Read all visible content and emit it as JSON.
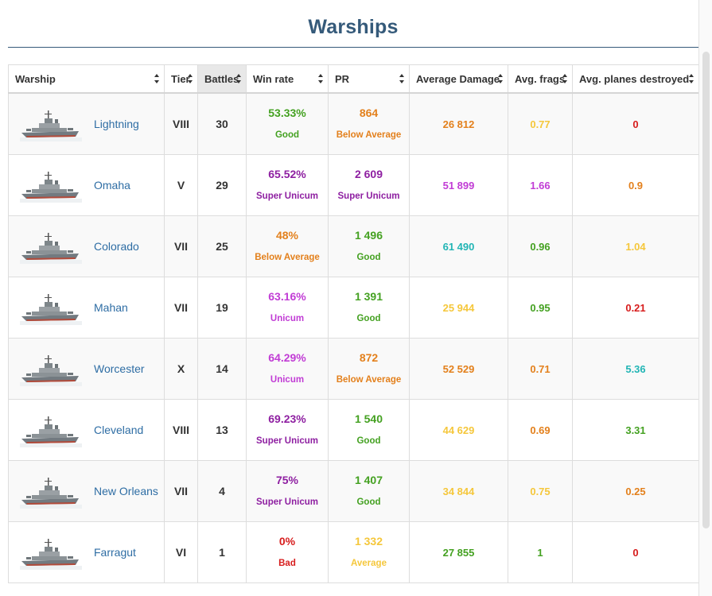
{
  "page": {
    "title": "Warships"
  },
  "table": {
    "columns": [
      {
        "label": "Warship",
        "sorted": false
      },
      {
        "label": "Tier",
        "sorted": false
      },
      {
        "label": "Battles",
        "sorted": true
      },
      {
        "label": "Win rate",
        "sorted": false
      },
      {
        "label": "PR",
        "sorted": false
      },
      {
        "label": "Average Damage",
        "sorted": false
      },
      {
        "label": "Avg. frags",
        "sorted": false
      },
      {
        "label": "Avg. planes destroyed",
        "sorted": false
      }
    ],
    "rows": [
      {
        "name": "Lightning",
        "tier": "VIII",
        "battles": "30",
        "winrate": {
          "value": "53.33%",
          "label": "Good",
          "color": "#44a121"
        },
        "pr": {
          "value": "864",
          "label": "Below Average",
          "color": "#e3801c"
        },
        "damage": {
          "value": "26 812",
          "color": "#e3801c"
        },
        "frags": {
          "value": "0.77",
          "color": "#f5c73b"
        },
        "planes": {
          "value": "0",
          "color": "#d71d1d"
        }
      },
      {
        "name": "Omaha",
        "tier": "V",
        "battles": "29",
        "winrate": {
          "value": "65.52%",
          "label": "Super Unicum",
          "color": "#8e1fa1"
        },
        "pr": {
          "value": "2 609",
          "label": "Super Unicum",
          "color": "#8e1fa1"
        },
        "damage": {
          "value": "51 899",
          "color": "#c13cd5"
        },
        "frags": {
          "value": "1.66",
          "color": "#c13cd5"
        },
        "planes": {
          "value": "0.9",
          "color": "#e3801c"
        }
      },
      {
        "name": "Colorado",
        "tier": "VII",
        "battles": "25",
        "winrate": {
          "value": "48%",
          "label": "Below Average",
          "color": "#e3801c"
        },
        "pr": {
          "value": "1 496",
          "label": "Good",
          "color": "#44a121"
        },
        "damage": {
          "value": "61 490",
          "color": "#22b5b5"
        },
        "frags": {
          "value": "0.96",
          "color": "#44a121"
        },
        "planes": {
          "value": "1.04",
          "color": "#f5c73b"
        }
      },
      {
        "name": "Mahan",
        "tier": "VII",
        "battles": "19",
        "winrate": {
          "value": "63.16%",
          "label": "Unicum",
          "color": "#c13cd5"
        },
        "pr": {
          "value": "1 391",
          "label": "Good",
          "color": "#44a121"
        },
        "damage": {
          "value": "25 944",
          "color": "#f5c73b"
        },
        "frags": {
          "value": "0.95",
          "color": "#44a121"
        },
        "planes": {
          "value": "0.21",
          "color": "#d71d1d"
        }
      },
      {
        "name": "Worcester",
        "tier": "X",
        "battles": "14",
        "winrate": {
          "value": "64.29%",
          "label": "Unicum",
          "color": "#c13cd5"
        },
        "pr": {
          "value": "872",
          "label": "Below Average",
          "color": "#e3801c"
        },
        "damage": {
          "value": "52 529",
          "color": "#e3801c"
        },
        "frags": {
          "value": "0.71",
          "color": "#e3801c"
        },
        "planes": {
          "value": "5.36",
          "color": "#22b5b5"
        }
      },
      {
        "name": "Cleveland",
        "tier": "VIII",
        "battles": "13",
        "winrate": {
          "value": "69.23%",
          "label": "Super Unicum",
          "color": "#8e1fa1"
        },
        "pr": {
          "value": "1 540",
          "label": "Good",
          "color": "#44a121"
        },
        "damage": {
          "value": "44 629",
          "color": "#f5c73b"
        },
        "frags": {
          "value": "0.69",
          "color": "#e3801c"
        },
        "planes": {
          "value": "3.31",
          "color": "#44a121"
        }
      },
      {
        "name": "New Orleans",
        "tier": "VII",
        "battles": "4",
        "winrate": {
          "value": "75%",
          "label": "Super Unicum",
          "color": "#8e1fa1"
        },
        "pr": {
          "value": "1 407",
          "label": "Good",
          "color": "#44a121"
        },
        "damage": {
          "value": "34 844",
          "color": "#f5c73b"
        },
        "frags": {
          "value": "0.75",
          "color": "#f5c73b"
        },
        "planes": {
          "value": "0.25",
          "color": "#e3801c"
        }
      },
      {
        "name": "Farragut",
        "tier": "VI",
        "battles": "1",
        "winrate": {
          "value": "0%",
          "label": "Bad",
          "color": "#d71d1d"
        },
        "pr": {
          "value": "1 332",
          "label": "Average",
          "color": "#f5c73b"
        },
        "damage": {
          "value": "27 855",
          "color": "#44a121"
        },
        "frags": {
          "value": "1",
          "color": "#44a121"
        },
        "planes": {
          "value": "0",
          "color": "#d71d1d"
        }
      }
    ]
  }
}
